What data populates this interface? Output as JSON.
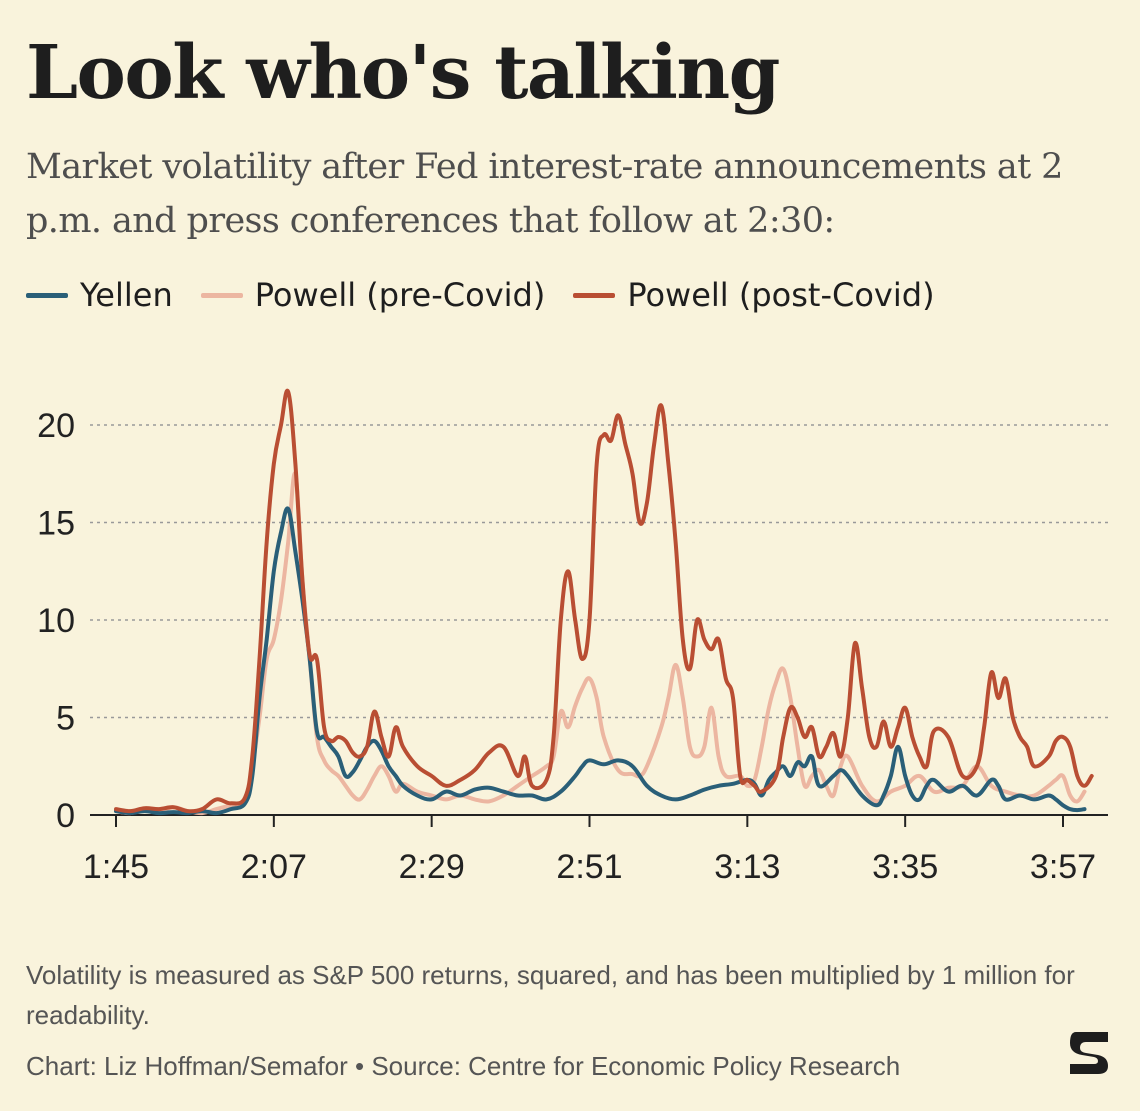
{
  "title": "Look who's talking",
  "subtitle": "Market volatility after Fed interest-rate announcements at 2 p.m. and press conferences that follow at 2:30:",
  "note": "Volatility is measured as S&P 500 returns, squared, and has been multiplied by 1 million for readability.",
  "credit": "Chart: Liz Hoffman/Semafor • Source: Centre for Economic Policy Research",
  "logo_text": "S",
  "colors": {
    "background": "#f9f3dc",
    "yellen": "#2a5f78",
    "powell_pre": "#ecb6a1",
    "powell_post": "#b94e33",
    "grid": "#999999"
  },
  "chart_data": {
    "type": "line",
    "x_unit": "minutes since 1:45 p.m.",
    "xlim": [
      0,
      134
    ],
    "ylim": [
      0,
      21
    ],
    "y_ticks": [
      0,
      5,
      10,
      15,
      20
    ],
    "y_tick_labels": [
      "0",
      "5",
      "10",
      "15",
      "20"
    ],
    "x_ticks": [
      0,
      22,
      44,
      66,
      88,
      110,
      132
    ],
    "x_tick_labels": [
      "1:45",
      "2:07",
      "2:29",
      "2:51",
      "3:13",
      "3:35",
      "3:57"
    ],
    "grid": "horizontal dotted",
    "legend_position": "top",
    "series": [
      {
        "name": "Powell (pre-Covid)",
        "color_key": "powell_pre",
        "points": [
          [
            0,
            0.2
          ],
          [
            2,
            0.1
          ],
          [
            4,
            0.3
          ],
          [
            6,
            0.2
          ],
          [
            8,
            0.4
          ],
          [
            10,
            0.2
          ],
          [
            12,
            0.1
          ],
          [
            14,
            0.3
          ],
          [
            16,
            0.5
          ],
          [
            18,
            0.7
          ],
          [
            19,
            2.5
          ],
          [
            20,
            5
          ],
          [
            21,
            8
          ],
          [
            22,
            9
          ],
          [
            23,
            11
          ],
          [
            24,
            14
          ],
          [
            25,
            17.5
          ],
          [
            26,
            12
          ],
          [
            27,
            8
          ],
          [
            28,
            4
          ],
          [
            29,
            2.8
          ],
          [
            30,
            2.3
          ],
          [
            31,
            2
          ],
          [
            32,
            1.5
          ],
          [
            33,
            1
          ],
          [
            34,
            0.8
          ],
          [
            35,
            1.3
          ],
          [
            36,
            2
          ],
          [
            37,
            2.5
          ],
          [
            38,
            2
          ],
          [
            39,
            1.2
          ],
          [
            40,
            1.6
          ],
          [
            42,
            1.2
          ],
          [
            44,
            1.0
          ],
          [
            46,
            0.8
          ],
          [
            48,
            1.0
          ],
          [
            50,
            0.8
          ],
          [
            52,
            0.7
          ],
          [
            54,
            1.0
          ],
          [
            56,
            1.5
          ],
          [
            58,
            2.0
          ],
          [
            60,
            2.5
          ],
          [
            61,
            3.0
          ],
          [
            62,
            5.3
          ],
          [
            63,
            4.5
          ],
          [
            64,
            5.6
          ],
          [
            65,
            6.5
          ],
          [
            66,
            7.0
          ],
          [
            67,
            6.0
          ],
          [
            68,
            4.0
          ],
          [
            70,
            2.3
          ],
          [
            72,
            2.1
          ],
          [
            73,
            2.0
          ],
          [
            74,
            2.5
          ],
          [
            76,
            4.5
          ],
          [
            77,
            6.0
          ],
          [
            78,
            7.7
          ],
          [
            79,
            6.0
          ],
          [
            80,
            3.5
          ],
          [
            81,
            3.0
          ],
          [
            82,
            3.5
          ],
          [
            83,
            5.5
          ],
          [
            84,
            3.0
          ],
          [
            85,
            2.0
          ],
          [
            87,
            2.0
          ],
          [
            88,
            1.5
          ],
          [
            89,
            1.8
          ],
          [
            90,
            3.5
          ],
          [
            91,
            5.5
          ],
          [
            92,
            6.8
          ],
          [
            93,
            7.5
          ],
          [
            94,
            6.0
          ],
          [
            95,
            3.5
          ],
          [
            96,
            1.5
          ],
          [
            97,
            2.0
          ],
          [
            98,
            2.3
          ],
          [
            99,
            1.5
          ],
          [
            100,
            1.0
          ],
          [
            101,
            2.5
          ],
          [
            102,
            3.0
          ],
          [
            104,
            1.5
          ],
          [
            106,
            0.7
          ],
          [
            108,
            1.2
          ],
          [
            110,
            1.5
          ],
          [
            112,
            2.0
          ],
          [
            114,
            1.2
          ],
          [
            116,
            1.4
          ],
          [
            118,
            1.5
          ],
          [
            120,
            2.5
          ],
          [
            122,
            1.5
          ],
          [
            124,
            1.2
          ],
          [
            126,
            1.0
          ],
          [
            128,
            1.0
          ],
          [
            130,
            1.5
          ],
          [
            131,
            1.8
          ],
          [
            132,
            2.0
          ],
          [
            133,
            1.0
          ],
          [
            134,
            0.7
          ],
          [
            135,
            1.2
          ]
        ]
      },
      {
        "name": "Yellen",
        "color_key": "yellen",
        "points": [
          [
            0,
            0.2
          ],
          [
            2,
            0.1
          ],
          [
            4,
            0.2
          ],
          [
            6,
            0.1
          ],
          [
            8,
            0.15
          ],
          [
            10,
            0.1
          ],
          [
            12,
            0.2
          ],
          [
            14,
            0.1
          ],
          [
            16,
            0.3
          ],
          [
            18,
            0.6
          ],
          [
            19,
            2.0
          ],
          [
            20,
            6
          ],
          [
            21,
            9
          ],
          [
            22,
            12.5
          ],
          [
            23,
            14.5
          ],
          [
            24,
            15.7
          ],
          [
            25,
            13.5
          ],
          [
            26,
            11
          ],
          [
            27,
            8
          ],
          [
            28,
            4.3
          ],
          [
            29,
            4.0
          ],
          [
            30,
            3.5
          ],
          [
            31,
            3.0
          ],
          [
            32,
            2.0
          ],
          [
            33,
            2.2
          ],
          [
            34,
            2.8
          ],
          [
            35,
            3.5
          ],
          [
            36,
            3.8
          ],
          [
            37,
            3.3
          ],
          [
            38,
            2.5
          ],
          [
            39,
            2.0
          ],
          [
            40,
            1.5
          ],
          [
            42,
            1.0
          ],
          [
            44,
            0.8
          ],
          [
            46,
            1.2
          ],
          [
            48,
            1.0
          ],
          [
            50,
            1.3
          ],
          [
            52,
            1.4
          ],
          [
            54,
            1.2
          ],
          [
            56,
            1.0
          ],
          [
            58,
            1.0
          ],
          [
            60,
            0.8
          ],
          [
            62,
            1.2
          ],
          [
            64,
            2.0
          ],
          [
            65,
            2.5
          ],
          [
            66,
            2.8
          ],
          [
            68,
            2.6
          ],
          [
            70,
            2.8
          ],
          [
            72,
            2.5
          ],
          [
            74,
            1.5
          ],
          [
            76,
            1.0
          ],
          [
            78,
            0.8
          ],
          [
            80,
            1.0
          ],
          [
            82,
            1.3
          ],
          [
            84,
            1.5
          ],
          [
            86,
            1.6
          ],
          [
            88,
            1.8
          ],
          [
            89,
            1.6
          ],
          [
            90,
            1.0
          ],
          [
            91,
            1.8
          ],
          [
            92,
            2.2
          ],
          [
            93,
            2.5
          ],
          [
            94,
            2.0
          ],
          [
            95,
            2.7
          ],
          [
            96,
            2.5
          ],
          [
            97,
            3.0
          ],
          [
            98,
            1.5
          ],
          [
            100,
            2.0
          ],
          [
            101,
            2.3
          ],
          [
            102,
            2.0
          ],
          [
            104,
            1.0
          ],
          [
            106,
            0.5
          ],
          [
            107,
            1.0
          ],
          [
            108,
            2.0
          ],
          [
            109,
            3.5
          ],
          [
            110,
            2.0
          ],
          [
            111,
            1.0
          ],
          [
            112,
            0.8
          ],
          [
            113,
            1.5
          ],
          [
            114,
            1.8
          ],
          [
            116,
            1.2
          ],
          [
            118,
            1.5
          ],
          [
            120,
            1.0
          ],
          [
            122,
            1.8
          ],
          [
            123,
            1.5
          ],
          [
            124,
            0.8
          ],
          [
            126,
            1.0
          ],
          [
            128,
            0.8
          ],
          [
            130,
            1.0
          ],
          [
            131,
            0.8
          ],
          [
            132,
            0.5
          ],
          [
            133,
            0.3
          ],
          [
            134,
            0.25
          ],
          [
            135,
            0.3
          ]
        ]
      },
      {
        "name": "Powell (post-Covid)",
        "color_key": "powell_post",
        "points": [
          [
            0,
            0.3
          ],
          [
            2,
            0.2
          ],
          [
            4,
            0.35
          ],
          [
            6,
            0.3
          ],
          [
            8,
            0.4
          ],
          [
            10,
            0.2
          ],
          [
            12,
            0.3
          ],
          [
            14,
            0.8
          ],
          [
            16,
            0.6
          ],
          [
            18,
            0.9
          ],
          [
            19,
            3
          ],
          [
            20,
            8
          ],
          [
            21,
            14
          ],
          [
            22,
            18
          ],
          [
            23,
            20
          ],
          [
            24,
            21.7
          ],
          [
            25,
            18
          ],
          [
            26,
            12
          ],
          [
            27,
            8.2
          ],
          [
            28,
            8
          ],
          [
            29,
            4.5
          ],
          [
            30,
            3.8
          ],
          [
            31,
            4.0
          ],
          [
            32,
            3.8
          ],
          [
            33,
            3.2
          ],
          [
            34,
            3.0
          ],
          [
            35,
            3.5
          ],
          [
            36,
            5.3
          ],
          [
            37,
            4.0
          ],
          [
            38,
            3.0
          ],
          [
            39,
            4.5
          ],
          [
            40,
            3.5
          ],
          [
            42,
            2.5
          ],
          [
            44,
            2.0
          ],
          [
            46,
            1.5
          ],
          [
            48,
            1.8
          ],
          [
            50,
            2.3
          ],
          [
            52,
            3.2
          ],
          [
            54,
            3.5
          ],
          [
            56,
            2.0
          ],
          [
            57,
            3.0
          ],
          [
            58,
            1.5
          ],
          [
            60,
            1.8
          ],
          [
            61,
            4.0
          ],
          [
            62,
            10
          ],
          [
            63,
            12.5
          ],
          [
            64,
            10
          ],
          [
            65,
            8
          ],
          [
            66,
            10
          ],
          [
            67,
            18
          ],
          [
            68,
            19.5
          ],
          [
            69,
            19.2
          ],
          [
            70,
            20.5
          ],
          [
            71,
            19
          ],
          [
            72,
            17.5
          ],
          [
            73,
            15
          ],
          [
            74,
            16
          ],
          [
            75,
            19
          ],
          [
            76,
            21
          ],
          [
            77,
            18
          ],
          [
            78,
            14
          ],
          [
            79,
            9
          ],
          [
            80,
            7.5
          ],
          [
            81,
            10
          ],
          [
            82,
            9
          ],
          [
            83,
            8.5
          ],
          [
            84,
            9
          ],
          [
            85,
            7
          ],
          [
            86,
            6
          ],
          [
            87,
            2
          ],
          [
            88,
            1.8
          ],
          [
            89,
            1.5
          ],
          [
            90,
            1.2
          ],
          [
            92,
            2
          ],
          [
            93,
            4
          ],
          [
            94,
            5.5
          ],
          [
            95,
            5
          ],
          [
            96,
            4
          ],
          [
            97,
            4.5
          ],
          [
            98,
            3
          ],
          [
            99,
            3.5
          ],
          [
            100,
            4.2
          ],
          [
            101,
            3
          ],
          [
            102,
            5
          ],
          [
            103,
            8.8
          ],
          [
            104,
            6.5
          ],
          [
            105,
            4
          ],
          [
            106,
            3.5
          ],
          [
            107,
            4.8
          ],
          [
            108,
            3.5
          ],
          [
            109,
            4.5
          ],
          [
            110,
            5.5
          ],
          [
            111,
            4.0
          ],
          [
            112,
            3
          ],
          [
            113,
            2.5
          ],
          [
            114,
            4.3
          ],
          [
            116,
            4.0
          ],
          [
            118,
            2
          ],
          [
            120,
            2.5
          ],
          [
            121,
            4.5
          ],
          [
            122,
            7.3
          ],
          [
            123,
            6
          ],
          [
            124,
            7
          ],
          [
            125,
            5
          ],
          [
            126,
            4
          ],
          [
            127,
            3.5
          ],
          [
            128,
            2.5
          ],
          [
            130,
            3
          ],
          [
            131,
            3.8
          ],
          [
            132,
            4.0
          ],
          [
            133,
            3.5
          ],
          [
            134,
            2
          ],
          [
            135,
            1.5
          ],
          [
            136,
            2
          ]
        ]
      }
    ]
  }
}
